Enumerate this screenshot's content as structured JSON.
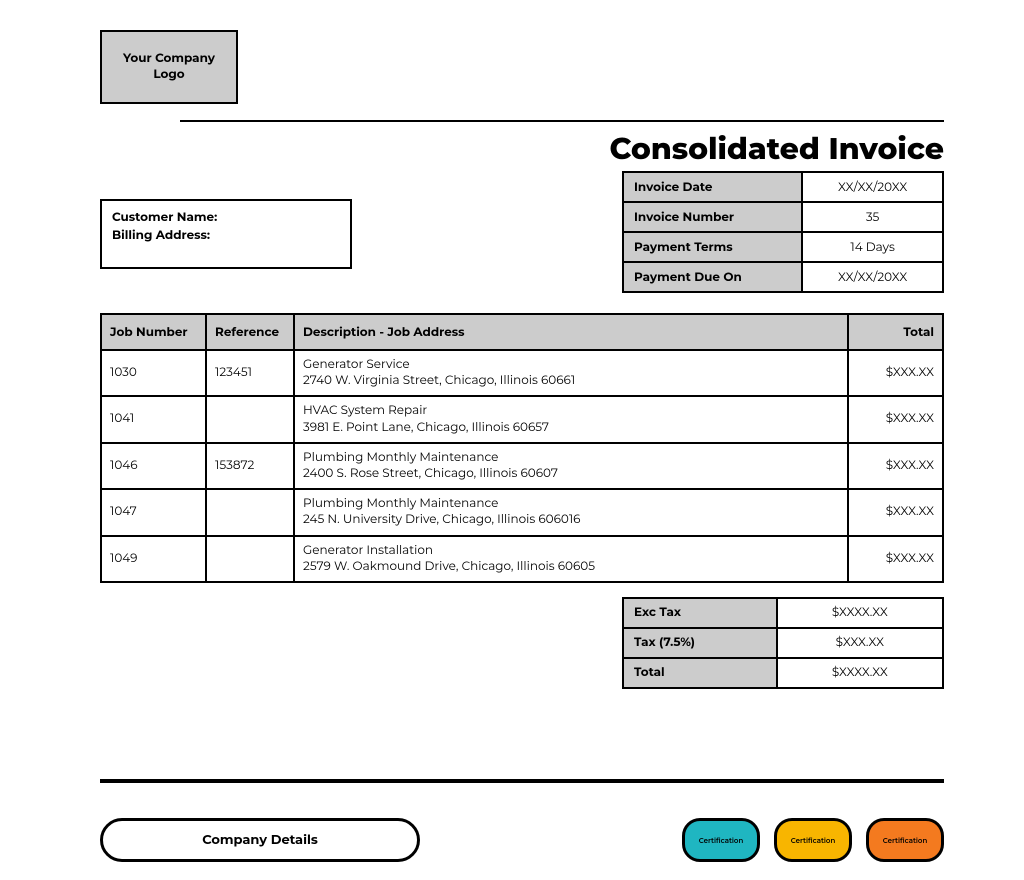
{
  "logo_text": "Your Company\nLogo",
  "title": "Consolidated Invoice",
  "customer_box": {
    "name_label": "Customer Name:",
    "address_label": "Billing Address:"
  },
  "meta": {
    "rows": [
      {
        "label": "Invoice Date",
        "value": "XX/XX/20XX"
      },
      {
        "label": "Invoice Number",
        "value": "35"
      },
      {
        "label": "Payment Terms",
        "value": "14 Days"
      },
      {
        "label": "Payment Due On",
        "value": "XX/XX/20XX"
      }
    ]
  },
  "jobs": {
    "headers": {
      "job": "Job Number",
      "ref": "Reference",
      "desc": "Description - Job Address",
      "total": "Total"
    },
    "rows": [
      {
        "job": "1030",
        "ref": "123451",
        "desc": "Generator Service\n2740 W. Virginia Street, Chicago, Illinois 60661",
        "total": "$XXX.XX"
      },
      {
        "job": "1041",
        "ref": "",
        "desc": "HVAC System Repair\n3981 E. Point Lane, Chicago, Illinois 60657",
        "total": "$XXX.XX"
      },
      {
        "job": "1046",
        "ref": "153872",
        "desc": "Plumbing Monthly Maintenance\n2400 S. Rose Street, Chicago, Illinois 60607",
        "total": "$XXX.XX"
      },
      {
        "job": "1047",
        "ref": "",
        "desc": "Plumbing Monthly Maintenance\n245 N. University Drive, Chicago, Illinois 606016",
        "total": "$XXX.XX"
      },
      {
        "job": "1049",
        "ref": "",
        "desc": "Generator Installation\n2579 W. Oakmound Drive, Chicago, Illinois 60605",
        "total": "$XXX.XX"
      }
    ]
  },
  "totals": {
    "rows": [
      {
        "label": "Exc Tax",
        "value": "$XXXX.XX"
      },
      {
        "label": "Tax (7.5%)",
        "value": "$XXX.XX"
      },
      {
        "label": "Total",
        "value": "$XXXX.XX"
      }
    ]
  },
  "footer": {
    "company_details": "Company Details",
    "certs": [
      {
        "label": "Certification",
        "color": "#1fb6c1"
      },
      {
        "label": "Certification",
        "color": "#f8b500"
      },
      {
        "label": "Certification",
        "color": "#f47a1f"
      }
    ]
  },
  "style": {
    "header_bg": "#cccccc",
    "border_color": "#000000",
    "page_bg": "#ffffff",
    "text_color": "#000000"
  }
}
